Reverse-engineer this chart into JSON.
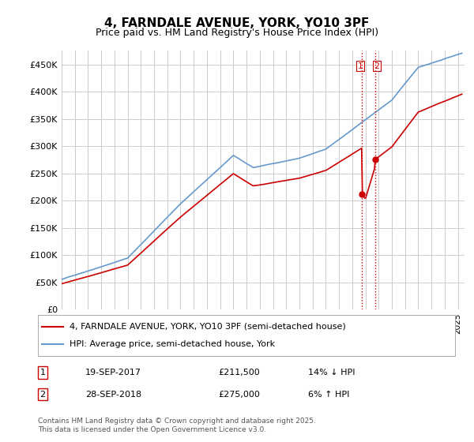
{
  "title": "4, FARNDALE AVENUE, YORK, YO10 3PF",
  "subtitle": "Price paid vs. HM Land Registry's House Price Index (HPI)",
  "ylabel_ticks": [
    "£0",
    "£50K",
    "£100K",
    "£150K",
    "£200K",
    "£250K",
    "£300K",
    "£350K",
    "£400K",
    "£450K"
  ],
  "ytick_values": [
    0,
    50000,
    100000,
    150000,
    200000,
    250000,
    300000,
    350000,
    400000,
    450000
  ],
  "ylim": [
    0,
    475000
  ],
  "xlim_start": 1995.0,
  "xlim_end": 2025.5,
  "red_color": "#cc0000",
  "blue_color": "#6699cc",
  "vline_color": "#cc0000",
  "marker_date1_x": 2017.72,
  "marker_date2_x": 2018.74,
  "marker1_y": 211500,
  "marker2_y": 275000,
  "legend_entry1": "4, FARNDALE AVENUE, YORK, YO10 3PF (semi-detached house)",
  "legend_entry2": "HPI: Average price, semi-detached house, York",
  "table_row1": [
    "1",
    "19-SEP-2017",
    "£211,500",
    "14% ↓ HPI"
  ],
  "table_row2": [
    "2",
    "28-SEP-2018",
    "£275,000",
    "6% ↑ HPI"
  ],
  "footnote": "Contains HM Land Registry data © Crown copyright and database right 2025.\nThis data is licensed under the Open Government Licence v3.0.",
  "background_color": "#ffffff",
  "grid_color": "#cccccc"
}
